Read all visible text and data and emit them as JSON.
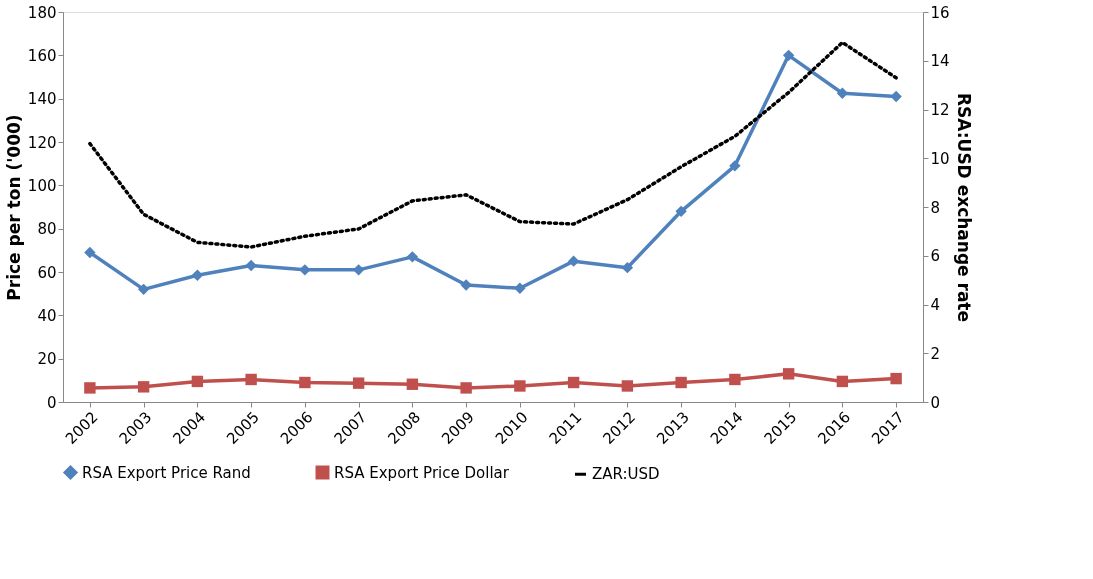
{
  "chart_data": {
    "type": "line",
    "ylabel": "Price per ton ('000)",
    "y2label": "RSA:USD exchange rate",
    "categories": [
      "2002",
      "2003",
      "2004",
      "2005",
      "2006",
      "2007",
      "2008",
      "2009",
      "2010",
      "2011",
      "2012",
      "2013",
      "2014",
      "2015",
      "2016",
      "2017"
    ],
    "series": [
      {
        "name": "RSA Export Price Rand",
        "color": "#4f81bd",
        "marker": "diamond",
        "line_style": "solid",
        "values": [
          69,
          52,
          58.5,
          63,
          61,
          61,
          67,
          54,
          52.5,
          65,
          62,
          88,
          109,
          160,
          142.5,
          141
        ]
      },
      {
        "name": "RSA Export Price Dollar",
        "color": "#c0504d",
        "marker": "square",
        "line_style": "solid",
        "values": [
          6.5,
          7,
          9.5,
          10.4,
          9,
          8.7,
          8.2,
          6.5,
          7.4,
          9,
          7.4,
          9,
          10.4,
          13,
          9.5,
          10.8
        ]
      },
      {
        "name": "ZAR:USD",
        "color": "#000000",
        "marker": "none",
        "line_style": "dotted",
        "axis": "y2",
        "values": [
          10.6,
          7.7,
          6.55,
          6.36,
          6.8,
          7.1,
          8.25,
          8.5,
          7.4,
          7.3,
          8.3,
          9.65,
          10.9,
          12.7,
          14.75,
          13.3
        ]
      }
    ],
    "ylim": [
      0,
      180
    ],
    "yticks": [
      0,
      20,
      40,
      60,
      80,
      100,
      120,
      140,
      160,
      180
    ],
    "y2lim": [
      0,
      16
    ],
    "y2ticks": [
      0,
      2,
      4,
      6,
      8,
      10,
      12,
      14,
      16
    ],
    "legend": "bottom",
    "grid": false
  }
}
